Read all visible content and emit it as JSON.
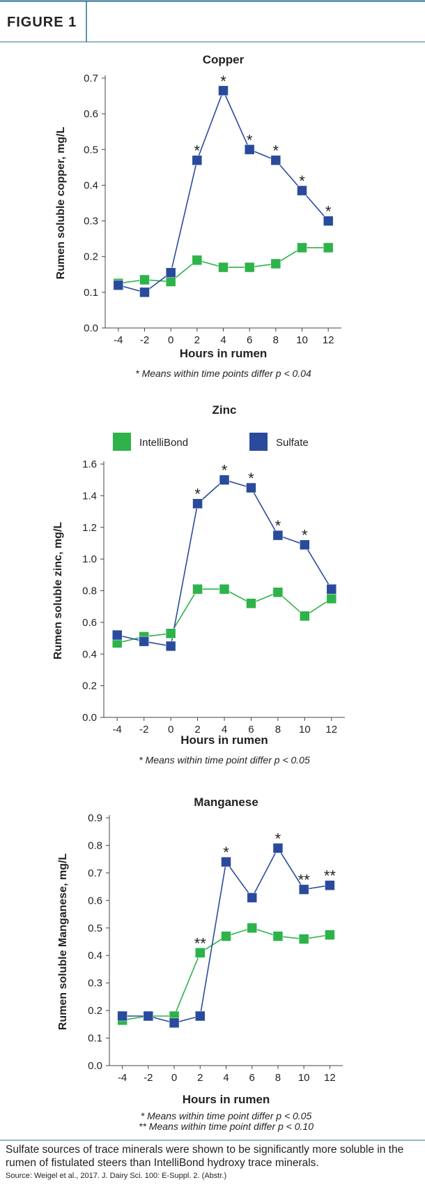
{
  "header": {
    "title": "FIGURE 1"
  },
  "chart_data": [
    {
      "type": "line",
      "title": "Copper",
      "x_label": "Hours in rumen",
      "y_label": "Rumen soluble copper, mg/L",
      "x": [
        -4,
        -2,
        0,
        2,
        4,
        6,
        8,
        10,
        12
      ],
      "series": [
        {
          "color": "#2db34a",
          "values": [
            0.125,
            0.135,
            0.13,
            0.19,
            0.17,
            0.17,
            0.18,
            0.225,
            0.225
          ]
        },
        {
          "color": "#2a4b9b",
          "values": [
            0.12,
            0.1,
            0.155,
            0.47,
            0.665,
            0.5,
            0.47,
            0.385,
            0.3
          ]
        }
      ],
      "xlim": [
        -5,
        13
      ],
      "xticks": [
        -4,
        -2,
        0,
        2,
        4,
        6,
        8,
        10,
        12
      ],
      "ylim": [
        0,
        0.7
      ],
      "yticks": [
        {
          "value": 0,
          "label": "0.0"
        },
        0.1,
        0.2,
        0.3,
        0.4,
        0.5,
        0.6,
        0.7
      ],
      "annotations": [
        {
          "x": 2,
          "text": "*"
        },
        {
          "x": 4,
          "text": "*"
        },
        {
          "x": 6,
          "text": "*"
        },
        {
          "x": 8,
          "text": "*"
        },
        {
          "x": 10,
          "text": "*"
        },
        {
          "x": 12,
          "text": "*"
        }
      ],
      "notes": [
        "* Means within time points differ p < 0.04"
      ]
    },
    {
      "type": "line",
      "title": "Zinc",
      "x_label": "Hours in rumen",
      "y_label": "Rumen soluble zinc, mg/L",
      "legend": "top",
      "x": [
        -4,
        -2,
        0,
        2,
        4,
        6,
        8,
        10,
        12
      ],
      "series": [
        {
          "name": "IntelliBond",
          "color": "#2db34a",
          "values": [
            0.47,
            0.51,
            0.53,
            0.81,
            0.81,
            0.72,
            0.79,
            0.64,
            0.75
          ]
        },
        {
          "name": "Sulfate",
          "color": "#2a4b9b",
          "values": [
            0.52,
            0.48,
            0.45,
            1.35,
            1.5,
            1.45,
            1.15,
            1.09,
            0.81
          ]
        }
      ],
      "xlim": [
        -5,
        13
      ],
      "xticks": [
        -4,
        -2,
        0,
        2,
        4,
        6,
        8,
        10,
        12
      ],
      "ylim": [
        0,
        1.6
      ],
      "yticks": [
        {
          "value": 0,
          "label": "0.0"
        },
        0.2,
        0.4,
        0.6,
        0.8,
        {
          "value": 1,
          "label": "1.0"
        },
        1.2,
        1.4,
        1.6
      ],
      "annotations": [
        {
          "x": 2,
          "text": "*"
        },
        {
          "x": 4,
          "text": "*"
        },
        {
          "x": 6,
          "text": "*"
        },
        {
          "x": 8,
          "text": "*"
        },
        {
          "x": 10,
          "text": "*"
        }
      ],
      "notes": [
        "* Means within time point differ p < 0.05"
      ]
    },
    {
      "type": "line",
      "title": "Manganese",
      "x_label": "Hours in rumen",
      "y_label": "Rumen soluble Manganese, mg/L",
      "x": [
        -4,
        -2,
        0,
        2,
        4,
        6,
        8,
        10,
        12
      ],
      "series": [
        {
          "color": "#2db34a",
          "values": [
            0.165,
            0.18,
            0.18,
            0.41,
            0.47,
            0.5,
            0.47,
            0.46,
            0.475
          ]
        },
        {
          "color": "#2a4b9b",
          "values": [
            0.18,
            0.18,
            0.155,
            0.18,
            0.74,
            0.61,
            0.79,
            0.64,
            0.655
          ]
        }
      ],
      "xlim": [
        -5,
        13
      ],
      "xticks": [
        -4,
        -2,
        0,
        2,
        4,
        6,
        8,
        10,
        12
      ],
      "ylim": [
        0,
        0.9
      ],
      "yticks": [
        {
          "value": 0,
          "label": "0.0"
        },
        0.1,
        0.2,
        0.3,
        0.4,
        0.5,
        0.6,
        0.7,
        0.8,
        0.9
      ],
      "annotations": [
        {
          "x": 2,
          "text": "**"
        },
        {
          "x": 4,
          "text": "*"
        },
        {
          "x": 8,
          "text": "*"
        },
        {
          "x": 10,
          "text": "**"
        },
        {
          "x": 12,
          "text": "**"
        }
      ],
      "notes": [
        "* Means within time point differ p < 0.05",
        "** Means within time point differ p < 0.10"
      ]
    }
  ],
  "caption": "Sulfate sources of trace minerals were shown to be significantly more soluble in the rumen of fistulated steers than IntelliBond hydroxy trace minerals.",
  "source": "Source: Weigel et al., 2017. J. Dairy Sci. 100: E-Suppl. 2. (Abstr.)"
}
